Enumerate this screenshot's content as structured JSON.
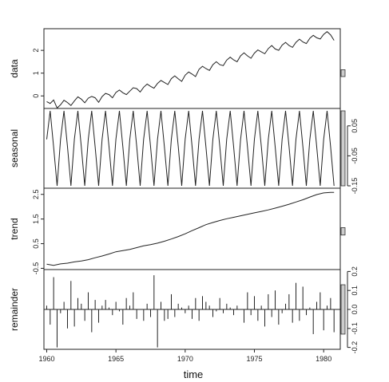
{
  "chart_data": {
    "type": "line",
    "xlabel": "time",
    "x_ticks": [
      1960,
      1965,
      1970,
      1975,
      1980
    ],
    "xlim": [
      1959.8,
      1981.2
    ],
    "colors": {
      "line": "#222222",
      "frame": "#222222",
      "range_bar": "#cccccc"
    },
    "panels": [
      {
        "name": "data",
        "ylabel": "data",
        "tick_side": "left",
        "type": "line",
        "ylim": [
          -0.55,
          2.95
        ],
        "yticks": [
          0,
          1,
          2
        ],
        "ytick_labels": [
          "0",
          "1",
          "2"
        ],
        "range_bar": [
          0.85,
          1.15
        ],
        "x": [
          1960,
          1960.25,
          1960.5,
          1960.75,
          1961,
          1961.25,
          1961.5,
          1961.75,
          1962,
          1962.25,
          1962.5,
          1962.75,
          1963,
          1963.25,
          1963.5,
          1963.75,
          1964,
          1964.25,
          1964.5,
          1964.75,
          1965,
          1965.25,
          1965.5,
          1965.75,
          1966,
          1966.25,
          1966.5,
          1966.75,
          1967,
          1967.25,
          1967.5,
          1967.75,
          1968,
          1968.25,
          1968.5,
          1968.75,
          1969,
          1969.25,
          1969.5,
          1969.75,
          1970,
          1970.25,
          1970.5,
          1970.75,
          1971,
          1971.25,
          1971.5,
          1971.75,
          1972,
          1972.25,
          1972.5,
          1972.75,
          1973,
          1973.25,
          1973.5,
          1973.75,
          1974,
          1974.25,
          1974.5,
          1974.75,
          1975,
          1975.25,
          1975.5,
          1975.75,
          1976,
          1976.25,
          1976.5,
          1976.75,
          1977,
          1977.25,
          1977.5,
          1977.75,
          1978,
          1978.25,
          1978.5,
          1978.75,
          1979,
          1979.25,
          1979.5,
          1979.75,
          1980,
          1980.25,
          1980.5,
          1980.75
        ],
        "values": [
          -0.25,
          -0.33,
          -0.18,
          -0.53,
          -0.39,
          -0.19,
          -0.29,
          -0.42,
          -0.22,
          -0.04,
          -0.14,
          -0.3,
          -0.1,
          -0.02,
          -0.08,
          -0.28,
          -0.03,
          0.11,
          0.06,
          -0.08,
          0.15,
          0.26,
          0.14,
          0.06,
          0.21,
          0.36,
          0.32,
          0.17,
          0.38,
          0.52,
          0.42,
          0.34,
          0.55,
          0.68,
          0.59,
          0.5,
          0.76,
          0.88,
          0.75,
          0.64,
          0.91,
          1.05,
          0.96,
          0.85,
          1.17,
          1.3,
          1.2,
          1.12,
          1.37,
          1.5,
          1.37,
          1.33,
          1.57,
          1.7,
          1.58,
          1.5,
          1.76,
          1.89,
          1.76,
          1.65,
          1.88,
          2.02,
          1.93,
          1.85,
          2.08,
          2.21,
          2.06,
          2.0,
          2.23,
          2.35,
          2.21,
          2.13,
          2.35,
          2.49,
          2.37,
          2.3,
          2.53,
          2.66,
          2.55,
          2.5,
          2.7,
          2.82,
          2.68,
          2.44
        ]
      },
      {
        "name": "seasonal",
        "ylabel": "seasonal",
        "tick_side": "right",
        "type": "line",
        "ylim": [
          -0.158,
          0.108
        ],
        "yticks": [
          0.05,
          -0.05,
          -0.15
        ],
        "ytick_labels": [
          "0.05",
          "-0.05",
          "-0.15"
        ],
        "range_bar": [
          -0.15,
          0.1
        ],
        "x": [
          1960,
          1960.25,
          1960.5,
          1960.75,
          1961,
          1961.25,
          1961.5,
          1961.75,
          1962,
          1962.25,
          1962.5,
          1962.75,
          1963,
          1963.25,
          1963.5,
          1963.75,
          1964,
          1964.25,
          1964.5,
          1964.75,
          1965,
          1965.25,
          1965.5,
          1965.75,
          1966,
          1966.25,
          1966.5,
          1966.75,
          1967,
          1967.25,
          1967.5,
          1967.75,
          1968,
          1968.25,
          1968.5,
          1968.75,
          1969,
          1969.25,
          1969.5,
          1969.75,
          1970,
          1970.25,
          1970.5,
          1970.75,
          1971,
          1971.25,
          1971.5,
          1971.75,
          1972,
          1972.25,
          1972.5,
          1972.75,
          1973,
          1973.25,
          1973.5,
          1973.75,
          1974,
          1974.25,
          1974.5,
          1974.75,
          1975,
          1975.25,
          1975.5,
          1975.75,
          1976,
          1976.25,
          1976.5,
          1976.75,
          1977,
          1977.25,
          1977.5,
          1977.75,
          1978,
          1978.25,
          1978.5,
          1978.75,
          1979,
          1979.25,
          1979.5,
          1979.75,
          1980,
          1980.25,
          1980.5,
          1980.75
        ],
        "values": [
          0.005,
          0.1,
          -0.02,
          -0.15,
          0.005,
          0.1,
          -0.02,
          -0.15,
          0.005,
          0.1,
          -0.02,
          -0.15,
          0.005,
          0.1,
          -0.02,
          -0.15,
          0.005,
          0.1,
          -0.02,
          -0.15,
          0.005,
          0.1,
          -0.02,
          -0.15,
          0.005,
          0.1,
          -0.02,
          -0.15,
          0.005,
          0.1,
          -0.02,
          -0.15,
          0.005,
          0.1,
          -0.02,
          -0.15,
          0.005,
          0.1,
          -0.02,
          -0.15,
          0.005,
          0.1,
          -0.02,
          -0.15,
          0.005,
          0.1,
          -0.02,
          -0.15,
          0.005,
          0.1,
          -0.02,
          -0.15,
          0.005,
          0.1,
          -0.02,
          -0.15,
          0.005,
          0.1,
          -0.02,
          -0.15,
          0.005,
          0.1,
          -0.02,
          -0.15,
          0.005,
          0.1,
          -0.02,
          -0.15,
          0.005,
          0.1,
          -0.02,
          -0.15,
          0.005,
          0.1,
          -0.02,
          -0.15,
          0.005,
          0.1,
          -0.02,
          -0.15,
          0.005,
          0.1,
          -0.02,
          -0.15
        ]
      },
      {
        "name": "trend",
        "ylabel": "trend",
        "tick_side": "left",
        "type": "line",
        "ylim": [
          -0.55,
          2.75
        ],
        "yticks": [
          -0.5,
          0.5,
          1.5,
          2.5
        ],
        "ytick_labels": [
          "-0.5",
          "0.5",
          "1.5",
          "2.5"
        ],
        "range_bar": [
          0.85,
          1.15
        ],
        "x": [
          1960,
          1960.5,
          1961,
          1961.5,
          1962,
          1962.5,
          1963,
          1963.5,
          1964,
          1964.5,
          1965,
          1965.5,
          1966,
          1966.5,
          1967,
          1967.5,
          1968,
          1968.5,
          1969,
          1969.5,
          1970,
          1970.5,
          1971,
          1971.5,
          1972,
          1972.5,
          1973,
          1973.5,
          1974,
          1974.5,
          1975,
          1975.5,
          1976,
          1976.5,
          1977,
          1977.5,
          1978,
          1978.5,
          1979,
          1979.5,
          1980,
          1980.5,
          1980.75
        ],
        "values": [
          -0.33,
          -0.38,
          -0.32,
          -0.29,
          -0.24,
          -0.2,
          -0.15,
          -0.07,
          0.0,
          0.08,
          0.17,
          0.22,
          0.27,
          0.34,
          0.41,
          0.46,
          0.52,
          0.6,
          0.69,
          0.79,
          0.9,
          1.03,
          1.15,
          1.27,
          1.36,
          1.44,
          1.51,
          1.57,
          1.63,
          1.69,
          1.75,
          1.81,
          1.87,
          1.94,
          2.02,
          2.1,
          2.19,
          2.28,
          2.39,
          2.49,
          2.56,
          2.58,
          2.58
        ]
      },
      {
        "name": "remainder",
        "ylabel": "remainder",
        "tick_side": "right",
        "type": "bar",
        "ylim": [
          -0.21,
          0.21
        ],
        "yticks": [
          0.2,
          0.1,
          0.0,
          -0.1,
          -0.2
        ],
        "ytick_labels": [
          "0.2",
          "0.1",
          "0.0",
          "-0.1",
          "-0.2"
        ],
        "range_bar": [
          -0.13,
          0.13
        ],
        "zero_line": true,
        "x": [
          1960,
          1960.25,
          1960.5,
          1960.75,
          1961,
          1961.25,
          1961.5,
          1961.75,
          1962,
          1962.25,
          1962.5,
          1962.75,
          1963,
          1963.25,
          1963.5,
          1963.75,
          1964,
          1964.25,
          1964.5,
          1964.75,
          1965,
          1965.25,
          1965.5,
          1965.75,
          1966,
          1966.25,
          1966.5,
          1966.75,
          1967,
          1967.25,
          1967.5,
          1967.75,
          1968,
          1968.25,
          1968.5,
          1968.75,
          1969,
          1969.25,
          1969.5,
          1969.75,
          1970,
          1970.25,
          1970.5,
          1970.75,
          1971,
          1971.25,
          1971.5,
          1971.75,
          1972,
          1972.25,
          1972.5,
          1972.75,
          1973,
          1973.25,
          1973.5,
          1973.75,
          1974,
          1974.25,
          1974.5,
          1974.75,
          1975,
          1975.25,
          1975.5,
          1975.75,
          1976,
          1976.25,
          1976.5,
          1976.75,
          1977,
          1977.25,
          1977.5,
          1977.75,
          1978,
          1978.25,
          1978.5,
          1978.75,
          1979,
          1979.25,
          1979.5,
          1979.75,
          1980,
          1980.25,
          1980.5,
          1980.75
        ],
        "values": [
          0.02,
          -0.08,
          0.17,
          -0.2,
          -0.02,
          0.04,
          -0.1,
          0.15,
          -0.09,
          0.06,
          0.03,
          -0.06,
          0.09,
          -0.12,
          0.05,
          -0.07,
          0.02,
          0.05,
          0.01,
          -0.03,
          0.04,
          -0.01,
          -0.08,
          0.06,
          0.02,
          0.09,
          -0.05,
          0.0,
          -0.06,
          0.03,
          -0.04,
          0.18,
          -0.2,
          0.04,
          -0.06,
          -0.05,
          0.08,
          -0.04,
          0.03,
          0.01,
          -0.02,
          0.02,
          -0.05,
          0.06,
          -0.06,
          0.07,
          0.04,
          0.02,
          -0.04,
          -0.01,
          0.06,
          -0.02,
          0.03,
          0.01,
          -0.03,
          0.02,
          0.0,
          -0.07,
          0.09,
          -0.03,
          0.07,
          -0.06,
          0.02,
          -0.09,
          0.08,
          -0.04,
          0.1,
          -0.08,
          -0.02,
          0.03,
          0.08,
          -0.07,
          0.14,
          -0.06,
          0.12,
          -0.03,
          0.01,
          -0.13,
          0.04,
          0.09,
          -0.11,
          0.02,
          0.06,
          -0.12
        ]
      }
    ]
  }
}
